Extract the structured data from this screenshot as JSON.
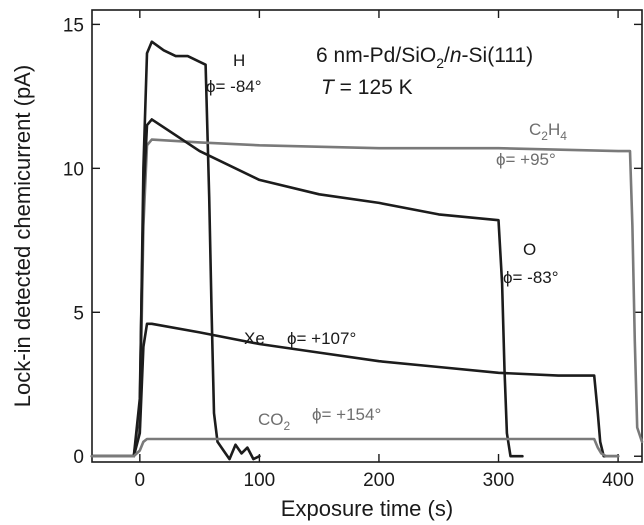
{
  "chart_data": {
    "type": "line",
    "title": "",
    "xlabel": "Exposure time (s)",
    "ylabel": "Lock-in detected chemicurrent (pA)",
    "xlim": [
      -40,
      420
    ],
    "ylim": [
      -0.2,
      15.5
    ],
    "xticks": [
      0,
      100,
      200,
      300,
      400
    ],
    "yticks": [
      0,
      5,
      10,
      15
    ],
    "xtick_labels": [
      "0",
      "100",
      "200",
      "300",
      "400"
    ],
    "ytick_labels": [
      "0",
      "5",
      "10",
      "15"
    ],
    "grid": false,
    "legend": "none",
    "annotations": {
      "sample": "6 nm-Pd/SiO",
      "sample_sub": "2",
      "sample_sep": "/",
      "sample_n": "n",
      "sample_rest": "-Si(111)",
      "temp_T": "T",
      "temp_rest": " = 125 K"
    },
    "series": [
      {
        "label": "H",
        "phi": "ϕ= -84°",
        "color": "#1c1c1c",
        "x": [
          -40,
          -5,
          0,
          3,
          6,
          10,
          20,
          30,
          40,
          50,
          55,
          58,
          60,
          62,
          65,
          70,
          75,
          80,
          85,
          90,
          95,
          100
        ],
        "y": [
          0,
          0,
          1.5,
          10,
          14.0,
          14.4,
          14.1,
          13.9,
          13.9,
          13.7,
          13.6,
          9,
          5,
          1.5,
          0.5,
          0.2,
          -0.1,
          0.4,
          0.1,
          0.3,
          -0.1,
          0
        ]
      },
      {
        "label": "C",
        "label_sub1": "2",
        "label_mid": "H",
        "label_sub2": "4",
        "phi": "ϕ= +95°",
        "color": "#7a7a7a",
        "x": [
          -40,
          -5,
          0,
          3,
          6,
          10,
          50,
          100,
          200,
          300,
          400,
          410,
          412,
          414,
          416,
          420
        ],
        "y": [
          0,
          0,
          1,
          8,
          10.8,
          11.0,
          10.9,
          10.8,
          10.7,
          10.7,
          10.6,
          10.6,
          8,
          4,
          1,
          0.5
        ]
      },
      {
        "label": "O",
        "phi": "ϕ= -83°",
        "color": "#1c1c1c",
        "x": [
          -40,
          -5,
          0,
          3,
          6,
          10,
          50,
          100,
          150,
          200,
          250,
          300,
          303,
          305,
          307,
          310,
          315,
          320
        ],
        "y": [
          0,
          0,
          2,
          9,
          11.5,
          11.7,
          10.6,
          9.6,
          9.1,
          8.8,
          8.4,
          8.2,
          6,
          3,
          0.8,
          0,
          0,
          0
        ]
      },
      {
        "label": "Xe",
        "phi": "ϕ= +107°",
        "color": "#1c1c1c",
        "x": [
          -40,
          -5,
          0,
          3,
          6,
          10,
          50,
          100,
          150,
          200,
          250,
          300,
          350,
          380,
          383,
          385,
          388,
          390,
          400
        ],
        "y": [
          0,
          0,
          0.8,
          3.8,
          4.6,
          4.6,
          4.3,
          3.9,
          3.6,
          3.3,
          3.1,
          2.9,
          2.8,
          2.8,
          1.5,
          0.5,
          0,
          0,
          0
        ]
      },
      {
        "label": "CO",
        "label_sub1": "2",
        "phi": "ϕ= +154°",
        "color": "#7a7a7a",
        "x": [
          -40,
          -5,
          0,
          3,
          6,
          10,
          50,
          100,
          200,
          300,
          350,
          380,
          383,
          386,
          390,
          400
        ],
        "y": [
          0,
          0,
          0.2,
          0.5,
          0.6,
          0.6,
          0.6,
          0.6,
          0.6,
          0.6,
          0.6,
          0.6,
          0.3,
          0.1,
          0,
          0
        ]
      }
    ]
  }
}
